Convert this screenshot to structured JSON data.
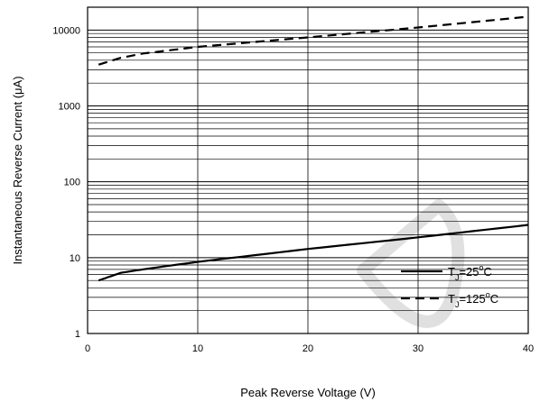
{
  "chart_data": {
    "type": "line",
    "xlabel": "Peak Reverse Voltage (V)",
    "ylabel": "Instantaneous Reverse Current (μA)",
    "xlim": [
      0,
      40
    ],
    "ylim": [
      1,
      20000
    ],
    "yscale": "log",
    "grid": true,
    "legend_position": "bottom-right",
    "x_ticks": [
      "0",
      "10",
      "20",
      "30",
      "40"
    ],
    "y_ticks": [
      "1",
      "10",
      "100",
      "1000",
      "10000"
    ],
    "series": [
      {
        "name": "T_J=25°C",
        "style": "solid",
        "legend": {
          "sym": "T",
          "sub": "J",
          "rest": "=25",
          "deg": "o",
          "unit": "C"
        },
        "x": [
          1,
          3,
          5,
          10,
          20,
          30,
          40
        ],
        "y": [
          5,
          6.3,
          7,
          8.8,
          13,
          18.5,
          27
        ]
      },
      {
        "name": "T_J=125°C",
        "style": "dashed",
        "legend": {
          "sym": "T",
          "sub": "J",
          "rest": "=125",
          "deg": "o",
          "unit": "C"
        },
        "x": [
          1,
          3,
          5,
          10,
          20,
          30,
          40
        ],
        "y": [
          3500,
          4300,
          4900,
          6000,
          8000,
          10800,
          15000
        ]
      }
    ]
  }
}
